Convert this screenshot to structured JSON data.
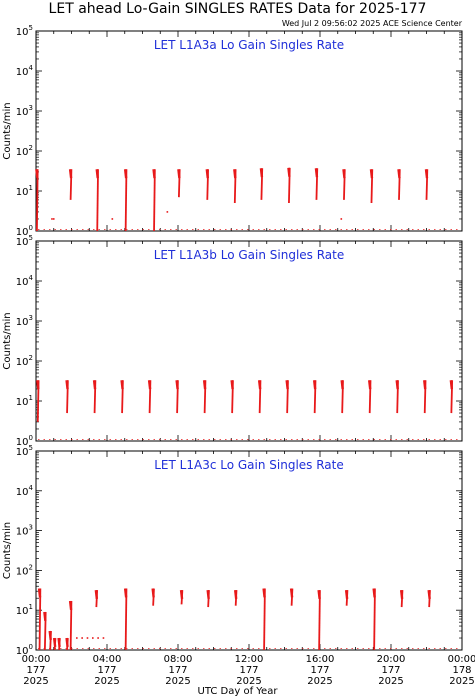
{
  "title": "LET ahead Lo-Gain SINGLES RATES Data for 2025-177",
  "timestamp": "Wed Jul  2 09:56:02 2025 ACE Science Center",
  "xaxis_title": "UTC Day of Year",
  "colors": {
    "data": "#e8191a",
    "panel_title": "#1f2fd8",
    "axis": "#000000"
  },
  "chart_data": [
    {
      "type": "line",
      "title": "LET L1A3a Lo Gain Singles Rate",
      "ylabel": "Counts/min",
      "yscale": "log",
      "ylim": [
        1,
        100000
      ],
      "xlim": [
        0,
        24
      ],
      "x_units": "hours UTC on day 177, 2025",
      "y_ticks": [
        "10^0",
        "10^1",
        "10^2",
        "10^3",
        "10^4",
        "10^5"
      ],
      "series": [
        {
          "spikes": [
            {
              "t": 0.05,
              "lo": 1,
              "hi": 35
            },
            {
              "t": 1.95,
              "lo": 6,
              "hi": 35
            },
            {
              "t": 3.45,
              "lo": 1,
              "hi": 35
            },
            {
              "t": 5.05,
              "lo": 1,
              "hi": 35
            },
            {
              "t": 6.65,
              "lo": 1,
              "hi": 35
            },
            {
              "t": 8.05,
              "lo": 7,
              "hi": 35
            },
            {
              "t": 9.65,
              "lo": 6,
              "hi": 35
            },
            {
              "t": 11.2,
              "lo": 5,
              "hi": 35
            },
            {
              "t": 12.7,
              "lo": 6,
              "hi": 37
            },
            {
              "t": 14.25,
              "lo": 5,
              "hi": 38
            },
            {
              "t": 15.8,
              "lo": 6,
              "hi": 37
            },
            {
              "t": 17.35,
              "lo": 6,
              "hi": 35
            },
            {
              "t": 18.9,
              "lo": 5,
              "hi": 35
            },
            {
              "t": 20.45,
              "lo": 6,
              "hi": 35
            },
            {
              "t": 22.0,
              "lo": 6,
              "hi": 35
            }
          ],
          "points": [
            {
              "t": 0.9,
              "y": 2
            },
            {
              "t": 1.0,
              "y": 2
            },
            {
              "t": 4.3,
              "y": 2
            },
            {
              "t": 7.4,
              "y": 3
            },
            {
              "t": 17.2,
              "y": 2
            }
          ]
        }
      ]
    },
    {
      "type": "line",
      "title": "LET L1A3b Lo Gain Singles Rate",
      "ylabel": "Counts/min",
      "yscale": "log",
      "ylim": [
        1,
        100000
      ],
      "xlim": [
        0,
        24
      ],
      "x_units": "hours UTC on day 177, 2025",
      "y_ticks": [
        "10^0",
        "10^1",
        "10^2",
        "10^3",
        "10^4",
        "10^5"
      ],
      "series": [
        {
          "spikes": [
            {
              "t": 0.1,
              "lo": 3,
              "hi": 33
            },
            {
              "t": 1.75,
              "lo": 5,
              "hi": 33
            },
            {
              "t": 3.3,
              "lo": 5,
              "hi": 33
            },
            {
              "t": 4.85,
              "lo": 5,
              "hi": 33
            },
            {
              "t": 6.4,
              "lo": 5,
              "hi": 33
            },
            {
              "t": 7.95,
              "lo": 5,
              "hi": 33
            },
            {
              "t": 9.5,
              "lo": 5,
              "hi": 33
            },
            {
              "t": 11.05,
              "lo": 5,
              "hi": 33
            },
            {
              "t": 12.6,
              "lo": 5,
              "hi": 33
            },
            {
              "t": 14.15,
              "lo": 5,
              "hi": 33
            },
            {
              "t": 15.7,
              "lo": 5,
              "hi": 33
            },
            {
              "t": 17.25,
              "lo": 5,
              "hi": 33
            },
            {
              "t": 18.8,
              "lo": 5,
              "hi": 33
            },
            {
              "t": 20.35,
              "lo": 5,
              "hi": 33
            },
            {
              "t": 21.9,
              "lo": 5,
              "hi": 33
            },
            {
              "t": 23.4,
              "lo": 5,
              "hi": 33
            }
          ],
          "points": []
        }
      ]
    },
    {
      "type": "line",
      "title": "LET L1A3c Lo Gain Singles Rate",
      "ylabel": "Counts/min",
      "yscale": "log",
      "ylim": [
        1,
        100000
      ],
      "xlim": [
        0,
        24
      ],
      "x_units": "hours UTC on day 177, 2025",
      "y_ticks": [
        "10^0",
        "10^1",
        "10^2",
        "10^3",
        "10^4",
        "10^5"
      ],
      "x_ticks": [
        {
          "t": 0,
          "label": "00:00\n177\n2025"
        },
        {
          "t": 4,
          "label": "04:00\n177\n2025"
        },
        {
          "t": 8,
          "label": "08:00\n177\n2025"
        },
        {
          "t": 12,
          "label": "12:00\n177\n2025"
        },
        {
          "t": 16,
          "label": "16:00\n177\n2025"
        },
        {
          "t": 20,
          "label": "20:00\n177\n2025"
        },
        {
          "t": 24,
          "label": "00:00\n178\n2025"
        }
      ],
      "series": [
        {
          "spikes": [
            {
              "t": 0.2,
              "lo": 1,
              "hi": 35
            },
            {
              "t": 0.5,
              "lo": 1,
              "hi": 9
            },
            {
              "t": 0.8,
              "lo": 1,
              "hi": 3
            },
            {
              "t": 1.05,
              "lo": 1,
              "hi": 2
            },
            {
              "t": 1.3,
              "lo": 1,
              "hi": 2
            },
            {
              "t": 1.75,
              "lo": 1,
              "hi": 2
            },
            {
              "t": 1.95,
              "lo": 1,
              "hi": 17
            },
            {
              "t": 3.4,
              "lo": 12,
              "hi": 32
            },
            {
              "t": 5.05,
              "lo": 1,
              "hi": 35
            },
            {
              "t": 6.6,
              "lo": 13,
              "hi": 35
            },
            {
              "t": 8.2,
              "lo": 14,
              "hi": 32
            },
            {
              "t": 9.7,
              "lo": 12,
              "hi": 32
            },
            {
              "t": 11.25,
              "lo": 13,
              "hi": 32
            },
            {
              "t": 12.85,
              "lo": 1,
              "hi": 35
            },
            {
              "t": 14.4,
              "lo": 13,
              "hi": 35
            },
            {
              "t": 15.95,
              "lo": 1,
              "hi": 32
            },
            {
              "t": 17.5,
              "lo": 13,
              "hi": 32
            },
            {
              "t": 19.05,
              "lo": 1,
              "hi": 35
            },
            {
              "t": 20.6,
              "lo": 12,
              "hi": 32
            },
            {
              "t": 22.15,
              "lo": 12,
              "hi": 32
            }
          ],
          "points": [
            {
              "t": 2.3,
              "y": 2
            },
            {
              "t": 2.6,
              "y": 2
            },
            {
              "t": 2.9,
              "y": 2
            },
            {
              "t": 3.2,
              "y": 2
            },
            {
              "t": 3.5,
              "y": 2
            },
            {
              "t": 3.8,
              "y": 2
            }
          ]
        }
      ]
    }
  ]
}
